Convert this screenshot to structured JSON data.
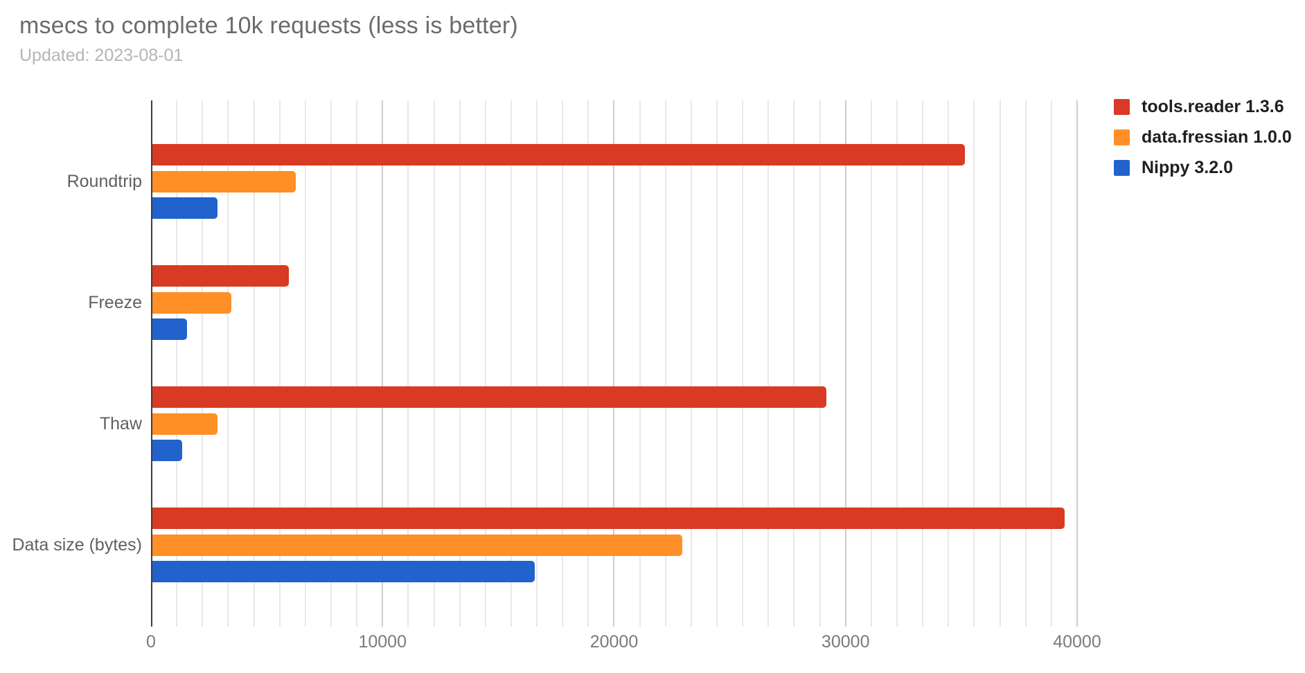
{
  "header": {
    "title": "msecs to complete 10k requests (less is better)",
    "subtitle": "Updated: 2023-08-01"
  },
  "colors": {
    "series_red": "#d93a23",
    "series_orange": "#ff8f26",
    "series_blue": "#2162cd",
    "title_text": "#6b6b6b",
    "subtitle_text": "#b5b5b5",
    "category_text": "#606060",
    "tick_text": "#7a7a7a",
    "legend_text": "#1f1f1f",
    "grid_minor": "#e8e8e8",
    "grid_major": "#cdcdcd",
    "axis_line": "#3c3c3c",
    "background": "#ffffff"
  },
  "chart_data": {
    "type": "bar",
    "orientation": "horizontal",
    "title": "msecs to complete 10k requests (less is better)",
    "subtitle": "Updated: 2023-08-01",
    "categories": [
      "Roundtrip",
      "Freeze",
      "Thaw",
      "Data size (bytes)"
    ],
    "series": [
      {
        "name": "tools.reader 1.3.6",
        "color": "#d93a23",
        "values": [
          35100,
          5900,
          29100,
          39400
        ]
      },
      {
        "name": "data.fressian 1.0.0",
        "color": "#ff8f26",
        "values": [
          6200,
          3400,
          2800,
          22900
        ]
      },
      {
        "name": "Nippy 3.2.0",
        "color": "#2162cd",
        "values": [
          2800,
          1500,
          1300,
          16500
        ]
      }
    ],
    "xticks": [
      0,
      10000,
      20000,
      30000,
      40000
    ],
    "xtick_labels": [
      "0",
      "10000",
      "20000",
      "30000",
      "40000"
    ],
    "xlim": [
      0,
      40300
    ],
    "minor_grid_step": 1111.11,
    "grid": true,
    "legend_position": "right",
    "xlabel": "",
    "ylabel": ""
  }
}
